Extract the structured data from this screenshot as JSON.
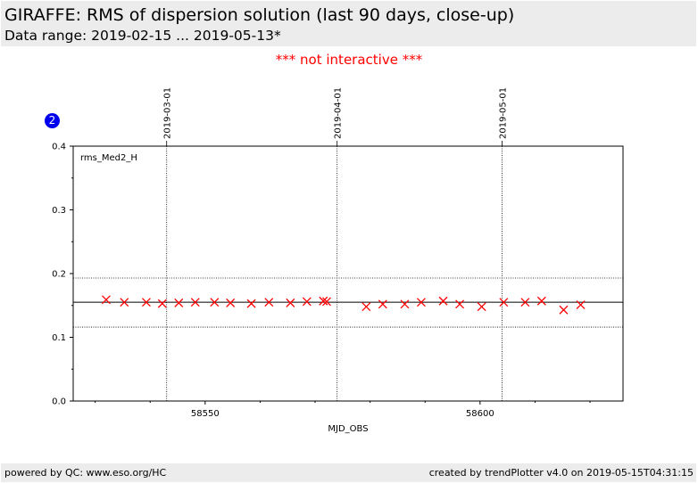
{
  "header": {
    "title": "GIRAFFE: RMS of dispersion solution (last 90 days, close-up)",
    "subtitle": "Data range: 2019-02-15 ... 2019-05-13*"
  },
  "notice": "*** not interactive ***",
  "badge": "2",
  "footer": {
    "left": "powered by QC: www.eso.org/HC",
    "right": "created by trendPlotter v4.0 on 2019-05-15T04:31:15"
  },
  "colors": {
    "marker": "#ff0000",
    "notice": "#ff0000",
    "badge": "#0000ee",
    "band": "#ececec"
  },
  "chart_data": {
    "type": "scatter",
    "panel_label": "rms_Med2_H",
    "xlabel": "MJD_OBS",
    "ylabel": "",
    "xlim": [
      58526,
      58626
    ],
    "ylim": [
      0.0,
      0.4
    ],
    "x_ticks": [
      58550,
      58600
    ],
    "x_tick_labels": [
      "58550",
      "58600"
    ],
    "y_ticks": [
      0.0,
      0.1,
      0.2,
      0.3,
      0.4
    ],
    "y_tick_labels": [
      "0.0",
      "0.1",
      "0.2",
      "0.3",
      "0.4"
    ],
    "date_markers": [
      {
        "x": 58543,
        "label": "2019-03-01"
      },
      {
        "x": 58574,
        "label": "2019-04-01"
      },
      {
        "x": 58604,
        "label": "2019-05-01"
      }
    ],
    "reference_lines": {
      "mean": 0.155,
      "upper": 0.193,
      "lower": 0.116
    },
    "marker": "x",
    "series": [
      {
        "x": [
          58532.0,
          58535.3,
          58539.3,
          58542.2,
          58545.2,
          58548.2,
          58551.7,
          58554.6,
          58558.4,
          58561.6,
          58565.5,
          58568.5,
          58571.5,
          58572.1,
          58579.3,
          58582.3,
          58586.3,
          58589.3,
          58593.3,
          58596.3,
          58600.3,
          58604.3,
          58608.2,
          58611.2,
          58615.2,
          58618.3
        ],
        "y": [
          0.159,
          0.155,
          0.155,
          0.153,
          0.154,
          0.155,
          0.155,
          0.154,
          0.153,
          0.155,
          0.154,
          0.156,
          0.157,
          0.156,
          0.148,
          0.152,
          0.152,
          0.155,
          0.157,
          0.152,
          0.148,
          0.155,
          0.155,
          0.157,
          0.143,
          0.151
        ]
      }
    ]
  }
}
